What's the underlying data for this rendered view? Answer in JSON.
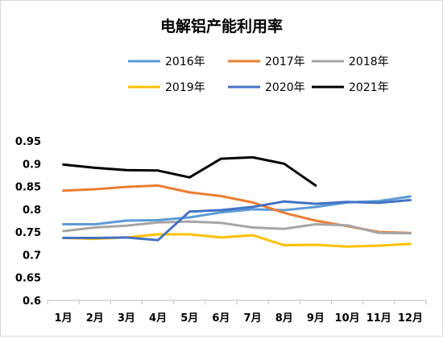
{
  "chart_data": {
    "type": "line",
    "title": "电解铝产能利用率",
    "categories": [
      "1月",
      "2月",
      "3月",
      "4月",
      "5月",
      "6月",
      "7月",
      "8月",
      "9月",
      "10月",
      "11月",
      "12月"
    ],
    "ylim": [
      0.6,
      0.95
    ],
    "yticks": [
      "0.6",
      "0.65",
      "0.7",
      "0.75",
      "0.8",
      "0.85",
      "0.9",
      "0.95"
    ],
    "grid": false,
    "legend_position": "top",
    "series": [
      {
        "name": "2016年",
        "color": "#5b9bd5",
        "values": [
          0.767,
          0.767,
          0.775,
          0.776,
          0.782,
          0.793,
          0.8,
          0.798,
          0.805,
          0.815,
          0.818,
          0.828
        ]
      },
      {
        "name": "2017年",
        "color": "#ed7d31",
        "values": [
          0.841,
          0.844,
          0.849,
          0.852,
          0.837,
          0.829,
          0.815,
          0.792,
          0.775,
          0.763,
          0.75,
          0.748
        ]
      },
      {
        "name": "2018年",
        "color": "#a5a5a5",
        "values": [
          0.752,
          0.76,
          0.764,
          0.771,
          0.773,
          0.77,
          0.76,
          0.757,
          0.767,
          0.765,
          0.748,
          0.747
        ]
      },
      {
        "name": "2019年",
        "color": "#ffc000",
        "values": [
          0.737,
          0.735,
          0.738,
          0.745,
          0.745,
          0.738,
          0.743,
          0.721,
          0.722,
          0.718,
          0.72,
          0.724
        ]
      },
      {
        "name": "2020年",
        "color": "#4472c4",
        "values": [
          0.737,
          0.737,
          0.738,
          0.732,
          0.795,
          0.798,
          0.805,
          0.817,
          0.812,
          0.816,
          0.814,
          0.82
        ]
      },
      {
        "name": "2021年",
        "color": "#000000",
        "values": [
          0.898,
          0.891,
          0.886,
          0.885,
          0.87,
          0.911,
          0.914,
          0.9,
          0.852,
          null,
          null,
          null
        ]
      }
    ]
  }
}
